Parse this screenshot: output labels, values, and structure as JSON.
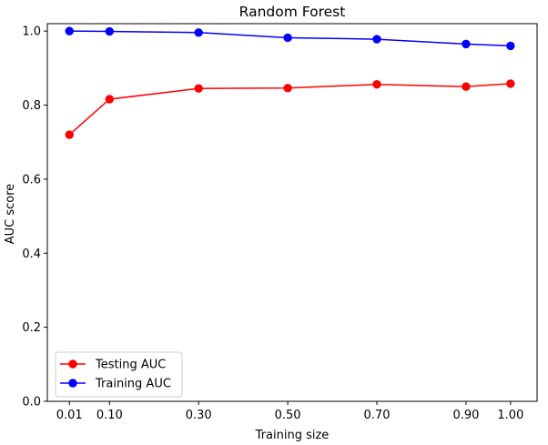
{
  "chart_data": {
    "type": "line",
    "title": "Random Forest",
    "xlabel": "Training size",
    "ylabel": "AUC score",
    "x": [
      0.01,
      0.1,
      0.3,
      0.5,
      0.7,
      0.9,
      1.0
    ],
    "xticks": [
      0.01,
      0.1,
      0.3,
      0.5,
      0.7,
      0.9,
      1.0
    ],
    "xtick_labels": [
      "0.01",
      "0.10",
      "0.30",
      "0.50",
      "0.70",
      "0.90",
      "1.00"
    ],
    "yticks": [
      0.0,
      0.2,
      0.4,
      0.6,
      0.8,
      1.0
    ],
    "ytick_labels": [
      "0.0",
      "0.2",
      "0.4",
      "0.6",
      "0.8",
      "1.0"
    ],
    "xlim": [
      -0.0395,
      1.0595
    ],
    "ylim": [
      0.0,
      1.02
    ],
    "grid": false,
    "legend_position": "lower-left",
    "series": [
      {
        "name": "Testing AUC",
        "color": "#ff0000",
        "marker": "circle",
        "values": [
          0.72,
          0.816,
          0.845,
          0.846,
          0.856,
          0.85,
          0.858
        ]
      },
      {
        "name": "Training AUC",
        "color": "#0000ff",
        "marker": "circle",
        "values": [
          1.0,
          0.999,
          0.996,
          0.982,
          0.978,
          0.965,
          0.96
        ]
      }
    ]
  }
}
